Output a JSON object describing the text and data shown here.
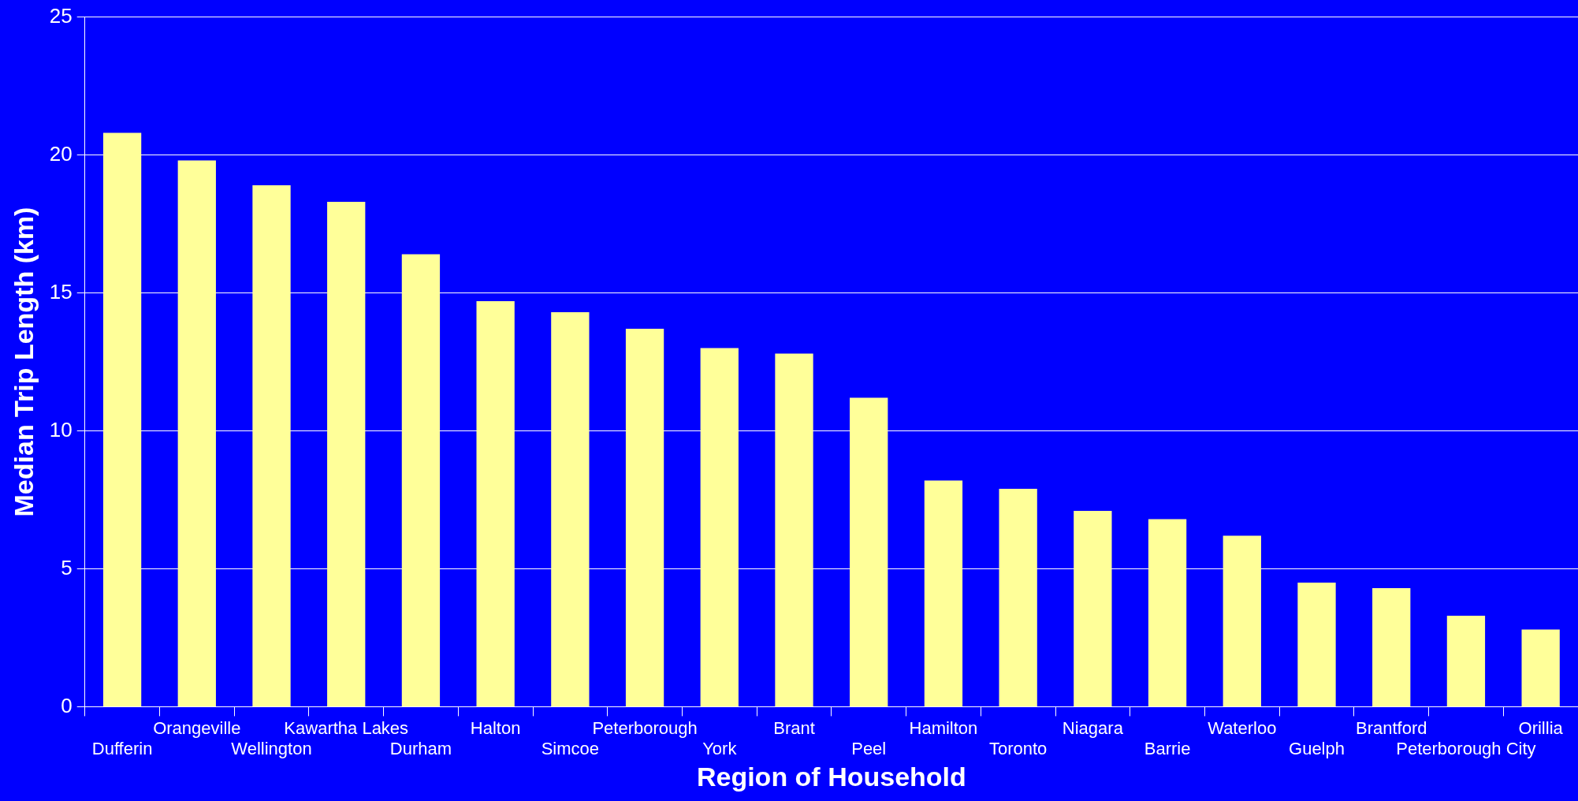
{
  "chart_data": {
    "type": "bar",
    "xlabel": "Region of Household",
    "ylabel": "Median Trip Length (km)",
    "categories": [
      "Dufferin",
      "Orangeville",
      "Wellington",
      "Kawartha Lakes",
      "Durham",
      "Halton",
      "Simcoe",
      "Peterborough",
      "York",
      "Brant",
      "Peel",
      "Hamilton",
      "Toronto",
      "Niagara",
      "Barrie",
      "Waterloo",
      "Guelph",
      "Brantford",
      "Peterborough City",
      "Orillia"
    ],
    "values": [
      20.8,
      19.8,
      18.9,
      18.3,
      16.4,
      14.7,
      14.3,
      13.7,
      13.0,
      12.8,
      11.2,
      8.2,
      7.9,
      7.1,
      6.8,
      6.2,
      4.5,
      4.3,
      3.3,
      2.8
    ],
    "color": "#ffff99",
    "ylim": [
      0,
      25
    ],
    "yticks": [
      0,
      5,
      10,
      15,
      20,
      25
    ],
    "grid": "y"
  }
}
